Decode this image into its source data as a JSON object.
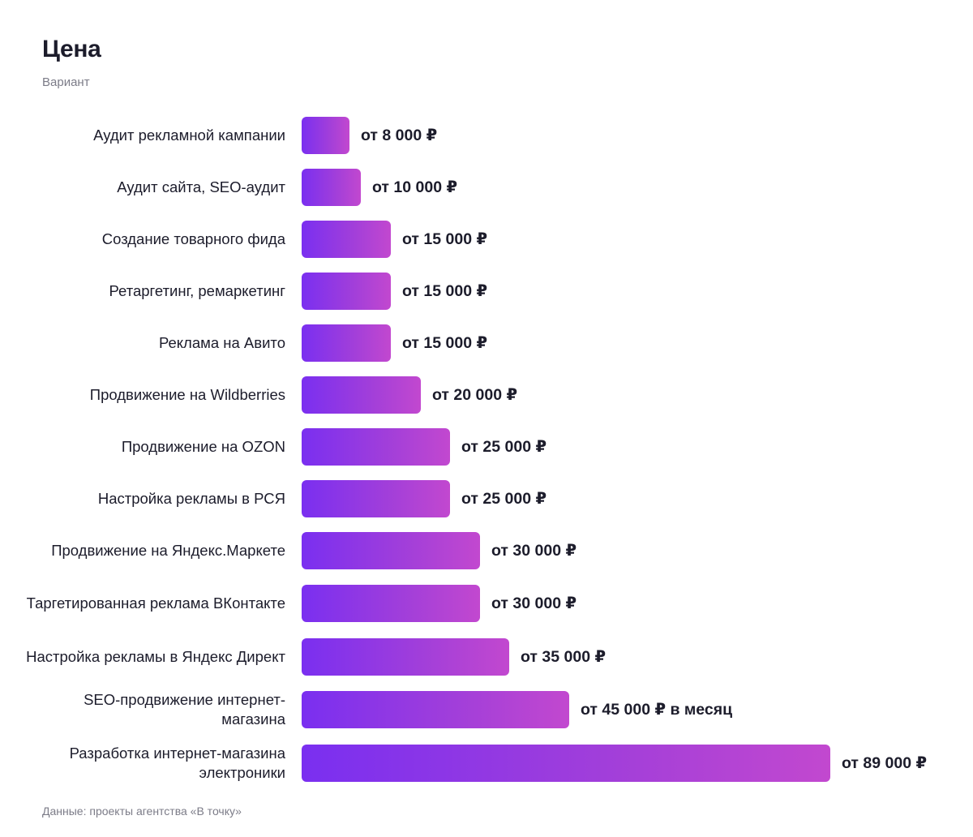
{
  "header": {
    "title": "Цена",
    "subtitle": "Вариант"
  },
  "footer": {
    "source": "Данные: проекты агентства «В точку»"
  },
  "colors": {
    "bar_start": "#7a2ff0",
    "bar_end": "#c248cf",
    "text": "#1c1c2b",
    "muted": "#7c7c88"
  },
  "chart_data": {
    "type": "bar",
    "orientation": "horizontal",
    "title": "Цена",
    "subtitle": "Вариант",
    "categories": [
      "Аудит рекламной кампании",
      "Аудит сайта, SEO-аудит",
      "Создание товарного фида",
      "Ретаргетинг, ремаркетинг",
      "Реклама на Авито",
      "Продвижение на Wildberries",
      "Продвижение на OZON",
      "Настройка рекламы в РСЯ",
      "Продвижение на Яндекс.Маркете",
      "Таргетированная реклама ВКонтакте",
      "Настройка рекламы в Яндекс Директ",
      "SEO-продвижение интернет-магазина",
      "Разработка интернет-магазина электроники"
    ],
    "values": [
      8000,
      10000,
      15000,
      15000,
      15000,
      20000,
      25000,
      25000,
      30000,
      30000,
      35000,
      45000,
      89000
    ],
    "value_labels": [
      "от 8 000 ₽",
      "от 10 000 ₽",
      "от 15 000 ₽",
      "от 15 000 ₽",
      "от 15 000 ₽",
      "от 20 000 ₽",
      "от 25 000 ₽",
      "от 25 000 ₽",
      "от 30 000 ₽",
      "от 30 000 ₽",
      "от 35 000 ₽",
      "от 45 000 ₽ в месяц",
      "от 89 000 ₽"
    ],
    "xlim": [
      0,
      89000
    ],
    "grid": false,
    "legend": "none"
  }
}
